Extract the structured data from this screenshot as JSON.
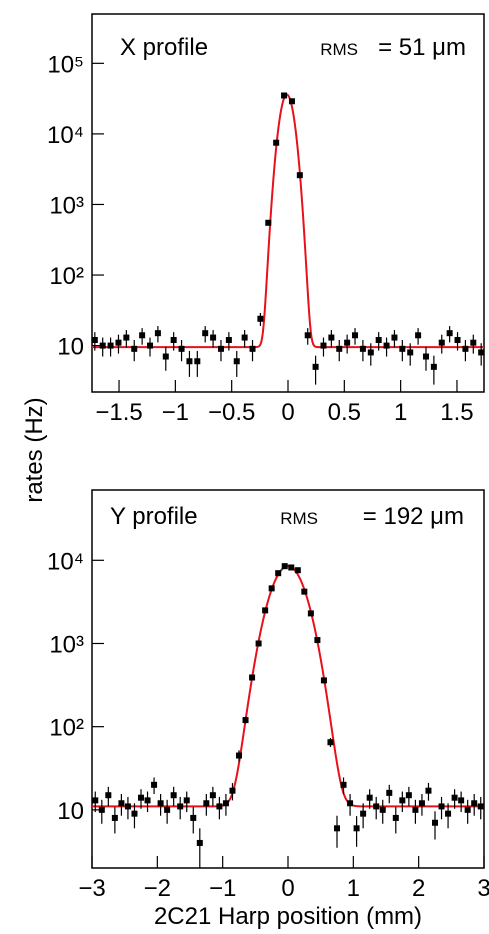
{
  "shared": {
    "ylabel": "rates (Hz)"
  },
  "chart_data": [
    {
      "type": "scatter",
      "title": "X profile",
      "rms_label": "RMS",
      "rms_text": "= 51 μm",
      "log_y": true,
      "color": "#000000",
      "xlim": [
        -1.74,
        1.74
      ],
      "ylim": [
        2.2,
        500000
      ],
      "xticks": [
        {
          "value": -1.5,
          "label": "−1.5"
        },
        {
          "value": -1,
          "label": "−1"
        },
        {
          "value": -0.5,
          "label": "−0.5"
        },
        0,
        0.5,
        1,
        1.5
      ],
      "yticks": [
        10,
        {
          "value": 100,
          "label": "10²"
        },
        {
          "value": 1000,
          "label": "10³"
        },
        {
          "value": 10000,
          "label": "10⁴"
        },
        {
          "value": 100000,
          "label": "10⁵"
        }
      ],
      "x": [
        -1.715,
        -1.645,
        -1.575,
        -1.505,
        -1.435,
        -1.365,
        -1.295,
        -1.225,
        -1.155,
        -1.085,
        -1.015,
        -0.945,
        -0.875,
        -0.805,
        -0.735,
        -0.665,
        -0.595,
        -0.525,
        -0.455,
        -0.385,
        -0.315,
        -0.245,
        -0.175,
        -0.105,
        -0.035,
        0.035,
        0.105,
        0.175,
        0.245,
        0.315,
        0.385,
        0.455,
        0.525,
        0.595,
        0.665,
        0.735,
        0.805,
        0.875,
        0.945,
        1.015,
        1.085,
        1.155,
        1.225,
        1.295,
        1.365,
        1.435,
        1.505,
        1.575,
        1.645,
        1.715
      ],
      "values": [
        12,
        10,
        10,
        11,
        13,
        9,
        14,
        10,
        15,
        7,
        12,
        9,
        6,
        6,
        15,
        13,
        9,
        12,
        6,
        13,
        9,
        24,
        550,
        7500,
        35000,
        29000,
        2600,
        14,
        5,
        10,
        13,
        9,
        11,
        14,
        9,
        8,
        12,
        10,
        13,
        9,
        8,
        14,
        7,
        5,
        11,
        15,
        12,
        9,
        11,
        8
      ],
      "errors": [
        3.5,
        3,
        3,
        3.3,
        3.6,
        3,
        3.7,
        3,
        3.9,
        2.6,
        3.5,
        3,
        2.4,
        2.4,
        3.9,
        3.6,
        3,
        3.5,
        2.4,
        3.6,
        3,
        5,
        23,
        87,
        187,
        170,
        51,
        3.7,
        2.2,
        3,
        3.6,
        3,
        3.3,
        3.7,
        3,
        2.8,
        3.5,
        3,
        3.6,
        3,
        2.8,
        3.7,
        2.6,
        2.2,
        3.3,
        3.9,
        3.5,
        3,
        3.3,
        2.8
      ],
      "fit": {
        "color": "#e8101a",
        "constant": 9.5,
        "amplitude": 36000,
        "mean": -0.01,
        "sigma": 0.051
      }
    },
    {
      "type": "scatter",
      "title": "Y profile",
      "rms_label": "RMS",
      "rms_text": "= 192 μm",
      "xlabel": "2C21 Harp position (mm)",
      "log_y": true,
      "color": "#000000",
      "xlim": [
        -3,
        3
      ],
      "ylim": [
        2,
        70000
      ],
      "xticks": [
        {
          "value": -3,
          "label": "−3"
        },
        {
          "value": -2,
          "label": "−2"
        },
        {
          "value": -1,
          "label": "−1"
        },
        0,
        1,
        2,
        3
      ],
      "yticks": [
        10,
        {
          "value": 100,
          "label": "10²"
        },
        {
          "value": 1000,
          "label": "10³"
        },
        {
          "value": 10000,
          "label": "10⁴"
        }
      ],
      "x": [
        -2.95,
        -2.85,
        -2.75,
        -2.65,
        -2.55,
        -2.45,
        -2.35,
        -2.25,
        -2.15,
        -2.05,
        -1.95,
        -1.85,
        -1.75,
        -1.65,
        -1.55,
        -1.45,
        -1.35,
        -1.25,
        -1.15,
        -1.05,
        -0.95,
        -0.85,
        -0.75,
        -0.65,
        -0.55,
        -0.45,
        -0.35,
        -0.25,
        -0.15,
        -0.05,
        0.05,
        0.15,
        0.25,
        0.35,
        0.45,
        0.55,
        0.65,
        0.75,
        0.85,
        0.95,
        1.05,
        1.15,
        1.25,
        1.35,
        1.45,
        1.55,
        1.65,
        1.75,
        1.85,
        1.95,
        2.05,
        2.15,
        2.25,
        2.35,
        2.45,
        2.55,
        2.65,
        2.75,
        2.85,
        2.95
      ],
      "values": [
        13,
        10,
        15,
        8,
        12,
        11,
        9,
        14,
        13,
        20,
        12,
        10,
        15,
        11,
        13,
        8,
        4,
        12,
        15,
        11,
        12,
        17,
        45,
        120,
        390,
        1000,
        2500,
        4600,
        7000,
        8500,
        8200,
        7600,
        4200,
        2300,
        1100,
        360,
        65,
        6,
        20,
        12,
        6,
        9,
        14,
        11,
        10,
        16,
        8,
        13,
        15,
        10,
        12,
        17,
        7,
        11,
        9,
        14,
        13,
        10,
        12,
        11
      ],
      "errors": [
        3.6,
        3.2,
        3.9,
        2.8,
        3.5,
        3.3,
        3,
        3.7,
        3.6,
        4.5,
        3.5,
        3.2,
        3.9,
        3.3,
        3.6,
        2.8,
        2,
        3.5,
        3.9,
        3.3,
        3.5,
        4,
        7,
        11,
        20,
        32,
        50,
        68,
        84,
        92,
        91,
        87,
        65,
        48,
        33,
        19,
        8,
        2.5,
        4.5,
        3.5,
        2.4,
        3,
        3.7,
        3.3,
        3.2,
        4,
        2.8,
        3.6,
        3.9,
        3.2,
        3.5,
        4.1,
        2.6,
        3.3,
        3,
        3.7,
        3.6,
        3.2,
        3.5,
        3.3
      ],
      "fit": {
        "color": "#e8101a",
        "constant": 11,
        "amplitude": 8500,
        "mean": 0,
        "sigma": 0.22
      }
    }
  ]
}
